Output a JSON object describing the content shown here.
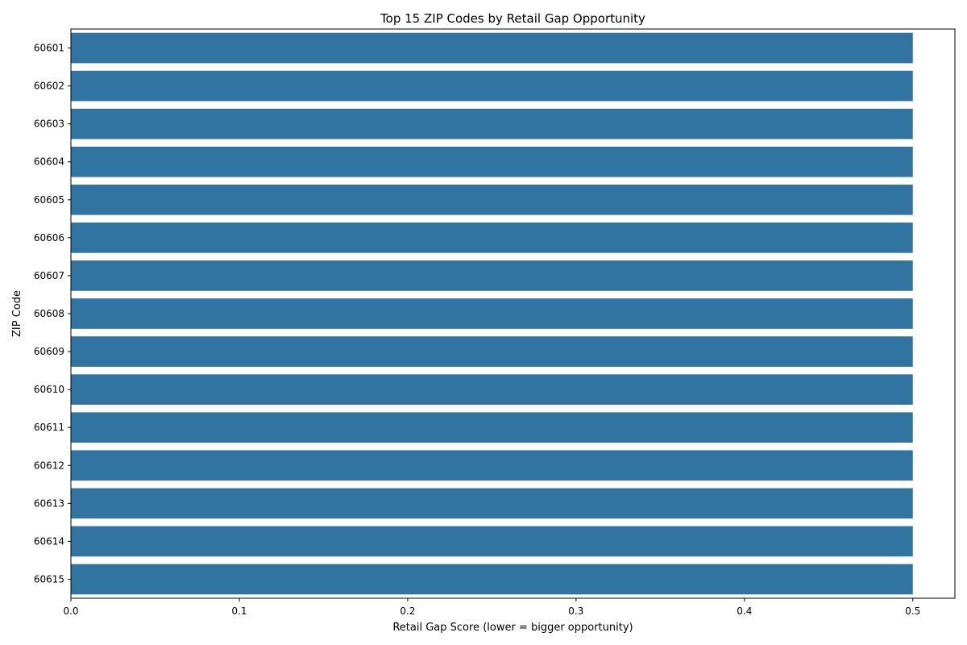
{
  "chart_data": {
    "type": "bar",
    "orientation": "horizontal",
    "title": "Top 15 ZIP Codes by Retail Gap Opportunity",
    "xlabel": "Retail Gap Score (lower = bigger opportunity)",
    "ylabel": "ZIP Code",
    "categories": [
      "60601",
      "60602",
      "60603",
      "60604",
      "60605",
      "60606",
      "60607",
      "60608",
      "60609",
      "60610",
      "60611",
      "60612",
      "60613",
      "60614",
      "60615"
    ],
    "values": [
      0.5,
      0.5,
      0.5,
      0.5,
      0.5,
      0.5,
      0.5,
      0.5,
      0.5,
      0.5,
      0.5,
      0.5,
      0.5,
      0.5,
      0.5
    ],
    "xlim": [
      0,
      0.525
    ],
    "xticks": [
      "0.0",
      "0.1",
      "0.2",
      "0.3",
      "0.4",
      "0.5"
    ],
    "bar_color": "#3274a1",
    "grid": false,
    "legend": "none"
  }
}
